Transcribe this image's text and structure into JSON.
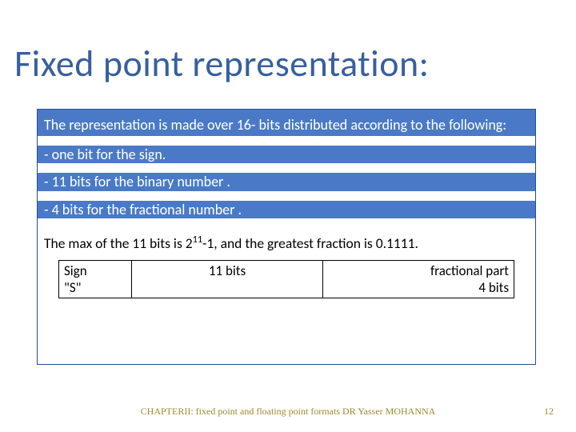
{
  "title": {
    "text": "Fixed point representation:",
    "color": "#385f9e"
  },
  "intro": "The representation is made over 16- bits distributed according to the following:",
  "bullets": [
    "-  one bit for the sign.",
    "-  11 bits for the binary number .",
    "-  4 bits for the fractional number ."
  ],
  "max_line_prefix": "The max of the 11 bits is 2",
  "max_line_exp": "11",
  "max_line_suffix": "-1, and the greatest fraction is 0.1111.",
  "table": {
    "r0c0": "Sign",
    "r0c1": "11 bits",
    "r0c2": "fractional part",
    "r1c0": "\"S\"",
    "r1c2": "4 bits"
  },
  "footer": {
    "text": "CHAPTERII: fixed point and floating point formats DR Yasser MOHANNA",
    "color": "#a08830"
  },
  "page": {
    "num": "12",
    "color": "#a08830"
  },
  "colors": {
    "blue_block": "#4a7ac7",
    "box_border": "#2a4d8f"
  }
}
